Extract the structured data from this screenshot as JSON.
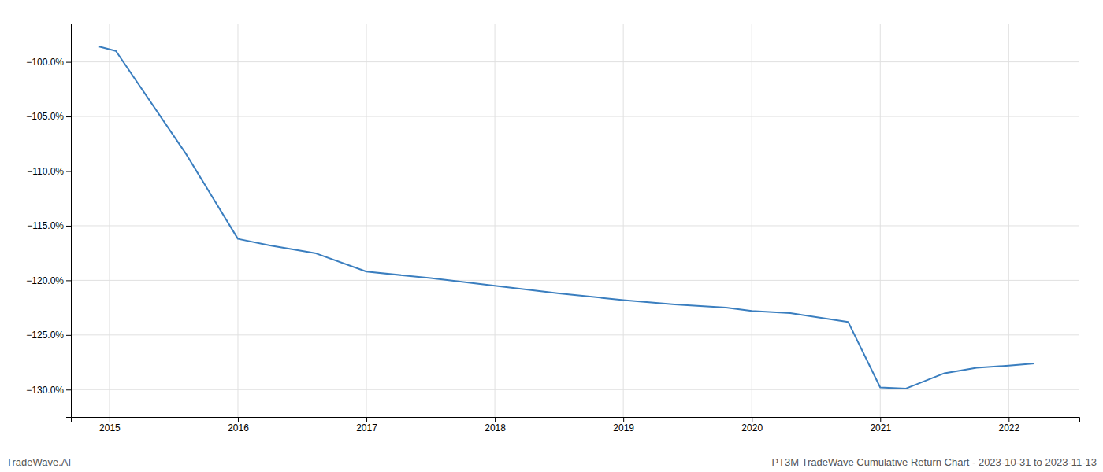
{
  "chart_data": {
    "type": "line",
    "x": [
      2014.92,
      2015.05,
      2015.6,
      2016.0,
      2016.25,
      2016.6,
      2017.0,
      2017.5,
      2018.0,
      2018.5,
      2019.0,
      2019.4,
      2019.8,
      2020.0,
      2020.3,
      2020.75,
      2021.0,
      2021.2,
      2021.5,
      2021.75,
      2022.0,
      2022.2
    ],
    "values": [
      -98.6,
      -99.0,
      -108.5,
      -116.2,
      -116.8,
      -117.5,
      -119.2,
      -119.8,
      -120.5,
      -121.2,
      -121.8,
      -122.2,
      -122.5,
      -122.8,
      -123.0,
      -123.8,
      -129.8,
      -129.9,
      -128.5,
      -128.0,
      -127.8,
      -127.6
    ],
    "color": "#3a7ebf",
    "xlim": [
      2014.7,
      2022.55
    ],
    "ylim": [
      -132.5,
      -96.5
    ],
    "xticks": [
      2015,
      2016,
      2017,
      2018,
      2019,
      2020,
      2021,
      2022
    ],
    "yticks": [
      {
        "value": -100.0,
        "label": "−100.0%"
      },
      {
        "value": -105.0,
        "label": "−105.0%"
      },
      {
        "value": -110.0,
        "label": "−110.0%"
      },
      {
        "value": -115.0,
        "label": "−115.0%"
      },
      {
        "value": -120.0,
        "label": "−120.0%"
      },
      {
        "value": -125.0,
        "label": "−125.0%"
      },
      {
        "value": -130.0,
        "label": "−130.0%"
      }
    ],
    "grid": true,
    "annotations": [
      "TradeWave.AI",
      "PT3M TradeWave Cumulative Return Chart - 2023-10-31 to 2023-11-13"
    ]
  }
}
